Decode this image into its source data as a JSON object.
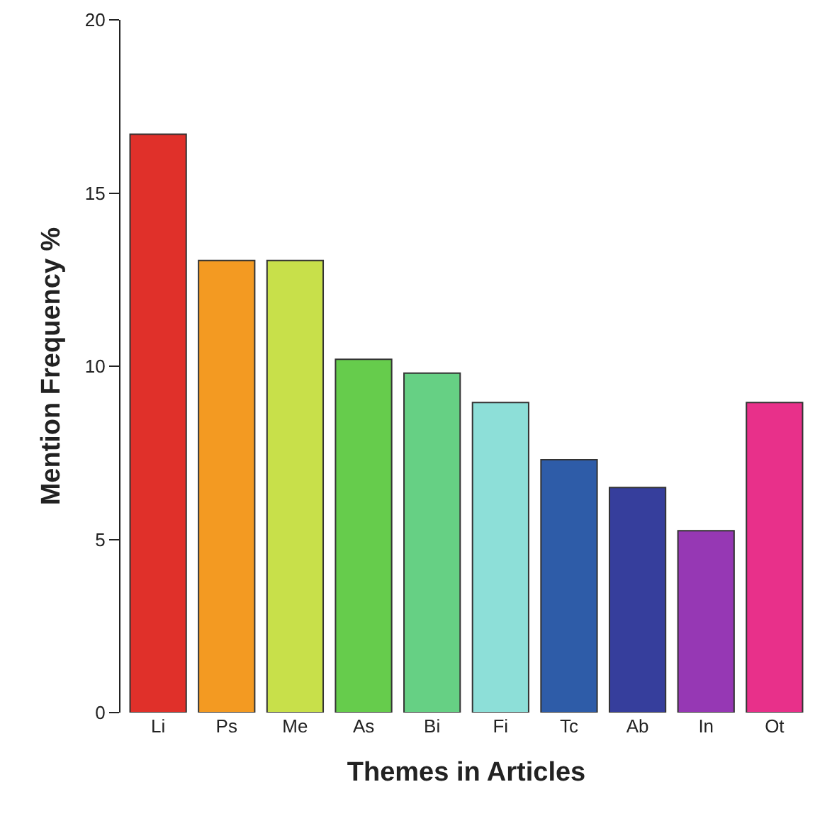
{
  "chart_data": {
    "type": "bar",
    "xlabel": "Themes in Articles",
    "ylabel": "Mention Frequency %",
    "categories": [
      "Li",
      "Ps",
      "Me",
      "As",
      "Bi",
      "Fi",
      "Tc",
      "Ab",
      "In",
      "Ot"
    ],
    "values": [
      16.7,
      13.05,
      13.05,
      10.2,
      9.8,
      8.95,
      7.3,
      6.5,
      5.25,
      8.95
    ],
    "colors": [
      "#e0302a",
      "#f39a22",
      "#c8e04a",
      "#66cc4c",
      "#66d084",
      "#8ddfd8",
      "#2e5ca8",
      "#363e9c",
      "#9638b4",
      "#e8308a"
    ],
    "ylim": [
      0,
      20
    ],
    "yticks": [
      0,
      5,
      10,
      15,
      20
    ]
  }
}
